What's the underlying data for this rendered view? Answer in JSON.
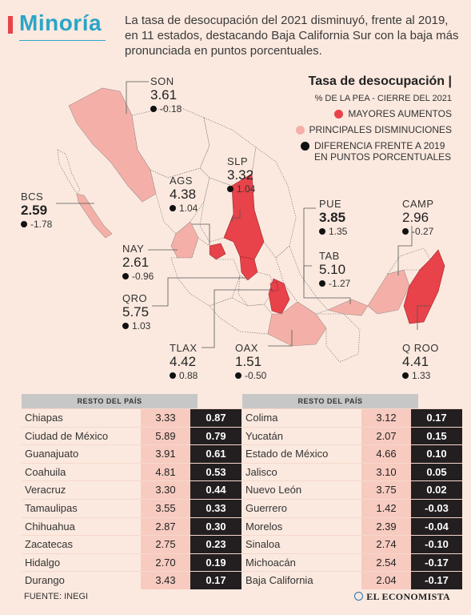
{
  "header": {
    "title": "Minoría",
    "intro": "La tasa de desocupación del 2021 disminuyó, frente al 2019, en 11 estados, destacando Baja California Sur con la baja más pronunciada en puntos porcentuales."
  },
  "legend": {
    "title": "Tasa de desocupación |",
    "subtitle": "% DE LA PEA - CIERRE DEL 2021",
    "items": [
      {
        "label": "MAYORES AUMENTOS",
        "color": "#e8424a"
      },
      {
        "label": "PRINCIPALES DISMINUCIONES",
        "color": "#f4b0a8"
      },
      {
        "label": "DIFERENCIA FRENTE A 2019 EN PUNTOS PORCENTUALES",
        "color": "#111111"
      }
    ]
  },
  "colors": {
    "increase": "#e8424a",
    "decrease": "#f4b0a8",
    "neutral": "#fbe9df",
    "title": "#2aa5c8"
  },
  "chart_data": {
    "type": "table",
    "map_states": [
      {
        "abbr": "SON",
        "rate": "3.61",
        "diff": "-0.18",
        "group": "decrease"
      },
      {
        "abbr": "BCS",
        "rate": "2.59",
        "diff": "-1.78",
        "group": "decrease"
      },
      {
        "abbr": "AGS",
        "rate": "4.38",
        "diff": "1.04",
        "group": "increase"
      },
      {
        "abbr": "SLP",
        "rate": "3.32",
        "diff": "1.04",
        "group": "increase"
      },
      {
        "abbr": "NAY",
        "rate": "2.61",
        "diff": "-0.96",
        "group": "decrease"
      },
      {
        "abbr": "QRO",
        "rate": "5.75",
        "diff": "1.03",
        "group": "increase"
      },
      {
        "abbr": "TLAX",
        "rate": "4.42",
        "diff": "0.88",
        "group": "increase"
      },
      {
        "abbr": "OAX",
        "rate": "1.51",
        "diff": "-0.50",
        "group": "decrease"
      },
      {
        "abbr": "PUE",
        "rate": "3.85",
        "diff": "1.35",
        "group": "increase"
      },
      {
        "abbr": "TAB",
        "rate": "5.10",
        "diff": "-1.27",
        "group": "decrease"
      },
      {
        "abbr": "CAMP",
        "rate": "2.96",
        "diff": "-0.27",
        "group": "decrease"
      },
      {
        "abbr": "Q ROO",
        "rate": "4.41",
        "diff": "1.33",
        "group": "increase"
      }
    ],
    "table_header": "RESTO DEL PAÍS",
    "table_left": [
      {
        "state": "Chiapas",
        "rate": "3.33",
        "diff": "0.87"
      },
      {
        "state": "Ciudad de México",
        "rate": "5.89",
        "diff": "0.79"
      },
      {
        "state": "Guanajuato",
        "rate": "3.91",
        "diff": "0.61"
      },
      {
        "state": "Coahuila",
        "rate": "4.81",
        "diff": "0.53"
      },
      {
        "state": "Veracruz",
        "rate": "3.30",
        "diff": "0.44"
      },
      {
        "state": "Tamaulipas",
        "rate": "3.55",
        "diff": "0.33"
      },
      {
        "state": "Chihuahua",
        "rate": "2.87",
        "diff": "0.30"
      },
      {
        "state": "Zacatecas",
        "rate": "2.75",
        "diff": "0.23"
      },
      {
        "state": "Hidalgo",
        "rate": "2.70",
        "diff": "0.19"
      },
      {
        "state": "Durango",
        "rate": "3.43",
        "diff": "0.17"
      }
    ],
    "table_right": [
      {
        "state": "Colima",
        "rate": "3.12",
        "diff": "0.17"
      },
      {
        "state": "Yucatán",
        "rate": "2.07",
        "diff": "0.15"
      },
      {
        "state": "Estado de México",
        "rate": "4.66",
        "diff": "0.10"
      },
      {
        "state": "Jalisco",
        "rate": "3.10",
        "diff": "0.05"
      },
      {
        "state": "Nuevo León",
        "rate": "3.75",
        "diff": "0.02"
      },
      {
        "state": "Guerrero",
        "rate": "1.42",
        "diff": "-0.03"
      },
      {
        "state": "Morelos",
        "rate": "2.39",
        "diff": "-0.04"
      },
      {
        "state": "Sinaloa",
        "rate": "2.74",
        "diff": "-0.10"
      },
      {
        "state": "Michoacán",
        "rate": "2.54",
        "diff": "-0.17"
      },
      {
        "state": "Baja California",
        "rate": "2.04",
        "diff": "-0.17"
      }
    ]
  },
  "footer": {
    "source": "FUENTE: INEGI",
    "brand": "EL ECONOMISTA"
  }
}
